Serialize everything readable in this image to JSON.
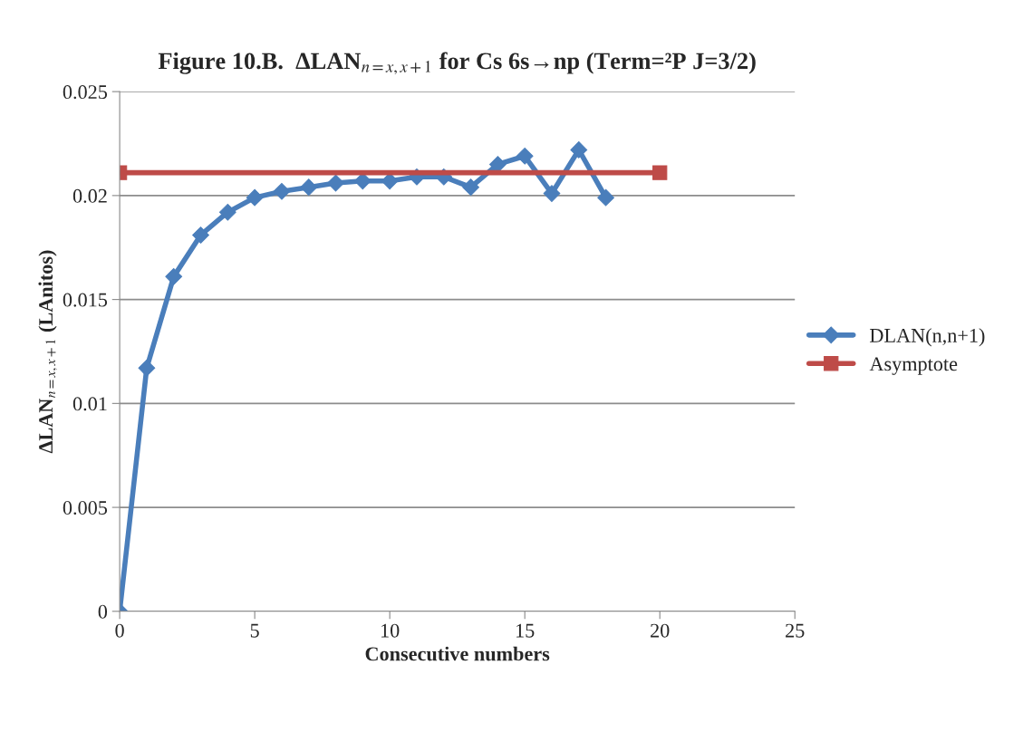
{
  "chart_data": {
    "type": "line",
    "title": "Figure 10.B.  ΔLAN$_{n=x,x+1}$ for Cs 6s→np (Term=²P J=3/2)",
    "xlabel": "Consecutive numbers",
    "ylabel": "ΔLAN$_{n=x,x+1}$ (LAnitos)",
    "series": [
      {
        "name": "DLAN(n,n+1)",
        "color": "#4a7ebb",
        "marker": "diamond",
        "x": [
          0,
          1,
          2,
          3,
          4,
          5,
          6,
          7,
          8,
          9,
          10,
          11,
          12,
          13,
          14,
          15,
          16,
          17,
          18
        ],
        "values": [
          0,
          0.0117,
          0.0161,
          0.0181,
          0.0192,
          0.0199,
          0.0202,
          0.0204,
          0.0206,
          0.0207,
          0.0207,
          0.0209,
          0.0209,
          0.0204,
          0.0215,
          0.0219,
          0.0201,
          0.0222,
          0.0199
        ]
      },
      {
        "name": "Asymptote",
        "color": "#be4b48",
        "marker": "square",
        "x": [
          0,
          20
        ],
        "values": [
          0.0211,
          0.0211
        ]
      }
    ],
    "xlim": [
      0,
      25
    ],
    "xticks": [
      0,
      5,
      10,
      15,
      20,
      25
    ],
    "ylim": [
      0,
      0.025
    ],
    "yticks": [
      0,
      0.005,
      0.01,
      0.015,
      0.02,
      0.025
    ],
    "grid": "y",
    "legend": "right"
  }
}
